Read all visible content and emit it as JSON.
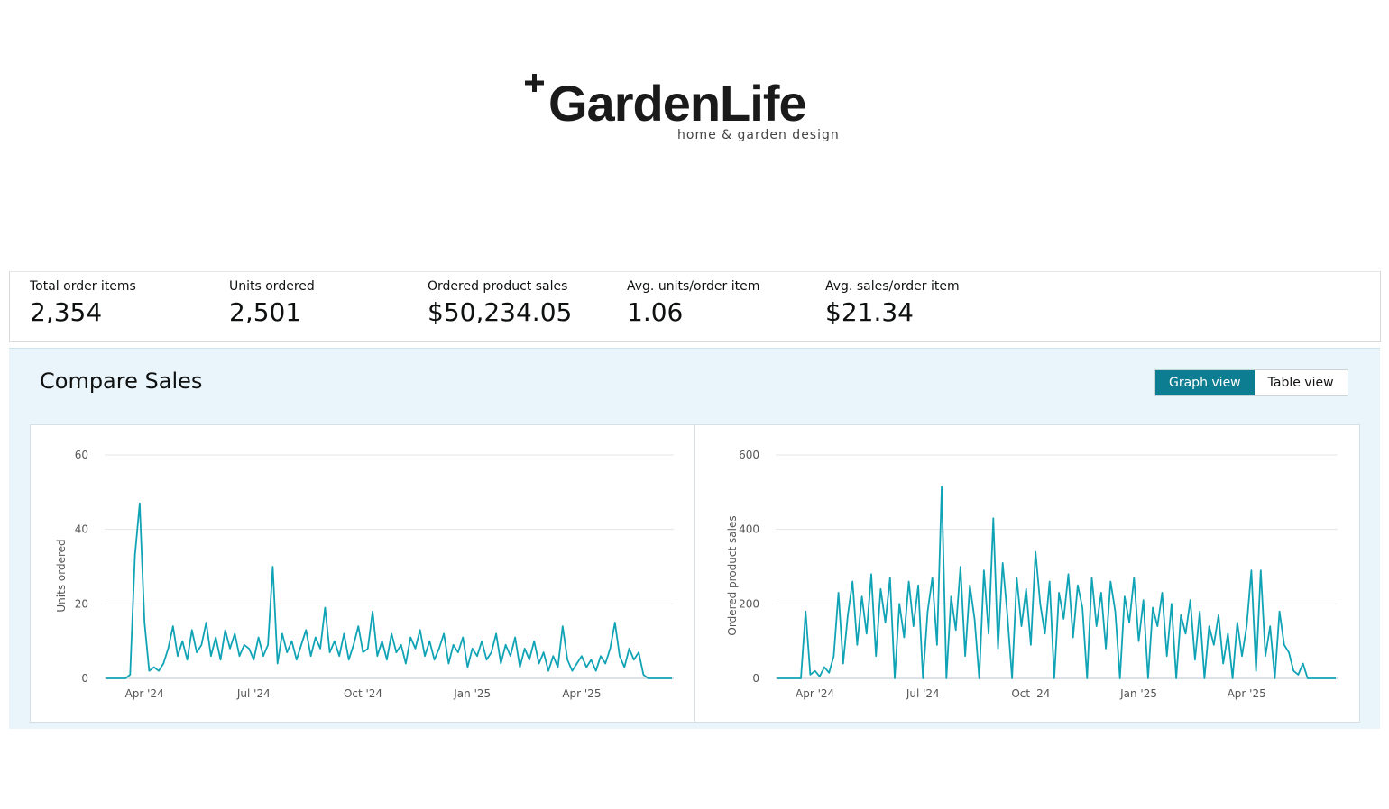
{
  "header": {
    "logo": "GardenLife",
    "tagline": "home & garden design"
  },
  "metrics": [
    {
      "label": "Total order items",
      "value": "2,354"
    },
    {
      "label": "Units ordered",
      "value": "2,501"
    },
    {
      "label": "Ordered product sales",
      "value": "$50,234.05"
    },
    {
      "label": "Avg. units/order item",
      "value": "1.06"
    },
    {
      "label": "Avg. sales/order item",
      "value": "$21.34"
    }
  ],
  "section": {
    "title": "Compare Sales",
    "buttons": [
      "Graph view",
      "Table view"
    ]
  },
  "chart_data": [
    {
      "type": "line",
      "y_label": "Units ordered",
      "color": "#0fa3b5",
      "grid": true,
      "ylim": [
        0,
        60
      ],
      "yticks": [
        0,
        20,
        40,
        60
      ],
      "categories": [
        null,
        null,
        null,
        null,
        null,
        null,
        null,
        null,
        "Apr '24",
        null,
        null,
        null,
        null,
        null,
        null,
        null,
        null,
        null,
        null,
        null,
        null,
        null,
        null,
        null,
        null,
        null,
        null,
        null,
        null,
        null,
        null,
        "Jul '24",
        null,
        null,
        null,
        null,
        null,
        null,
        null,
        null,
        null,
        null,
        null,
        null,
        null,
        null,
        null,
        null,
        null,
        null,
        null,
        null,
        null,
        null,
        "Oct '24",
        null,
        null,
        null,
        null,
        null,
        null,
        null,
        null,
        null,
        null,
        null,
        null,
        null,
        null,
        null,
        null,
        null,
        null,
        null,
        null,
        null,
        null,
        "Jan '25",
        null,
        null,
        null,
        null,
        null,
        null,
        null,
        null,
        null,
        null,
        null,
        null,
        null,
        null,
        null,
        null,
        null,
        null,
        null,
        null,
        null,
        null,
        "Apr '25",
        null,
        null,
        null,
        null,
        null,
        null,
        null,
        null,
        null,
        null,
        null,
        null,
        null,
        null,
        null,
        null,
        null,
        null,
        null
      ],
      "values": [
        0,
        0,
        0,
        0,
        0,
        1,
        33,
        47,
        15,
        2,
        3,
        2,
        4,
        8,
        14,
        6,
        10,
        5,
        13,
        7,
        9,
        15,
        6,
        11,
        5,
        13,
        8,
        12,
        6,
        9,
        8,
        5,
        11,
        6,
        9,
        30,
        4,
        12,
        7,
        10,
        5,
        9,
        13,
        6,
        11,
        8,
        19,
        7,
        10,
        6,
        12,
        5,
        9,
        14,
        7,
        8,
        18,
        6,
        10,
        5,
        12,
        7,
        9,
        4,
        11,
        8,
        13,
        6,
        10,
        5,
        8,
        12,
        4,
        9,
        7,
        11,
        3,
        8,
        6,
        10,
        5,
        7,
        12,
        4,
        9,
        6,
        11,
        3,
        8,
        5,
        10,
        4,
        7,
        2,
        6,
        3,
        14,
        5,
        2,
        4,
        6,
        3,
        5,
        2,
        6,
        4,
        8,
        15,
        6,
        3,
        8,
        5,
        7,
        1,
        0,
        0,
        0,
        0,
        0,
        0
      ]
    },
    {
      "type": "line",
      "y_label": "Ordered product sales",
      "color": "#0fa3b5",
      "grid": true,
      "ylim": [
        0,
        600
      ],
      "yticks": [
        0,
        200,
        400,
        600
      ],
      "categories": [
        null,
        null,
        null,
        null,
        null,
        null,
        null,
        null,
        "Apr '24",
        null,
        null,
        null,
        null,
        null,
        null,
        null,
        null,
        null,
        null,
        null,
        null,
        null,
        null,
        null,
        null,
        null,
        null,
        null,
        null,
        null,
        null,
        "Jul '24",
        null,
        null,
        null,
        null,
        null,
        null,
        null,
        null,
        null,
        null,
        null,
        null,
        null,
        null,
        null,
        null,
        null,
        null,
        null,
        null,
        null,
        null,
        "Oct '24",
        null,
        null,
        null,
        null,
        null,
        null,
        null,
        null,
        null,
        null,
        null,
        null,
        null,
        null,
        null,
        null,
        null,
        null,
        null,
        null,
        null,
        null,
        "Jan '25",
        null,
        null,
        null,
        null,
        null,
        null,
        null,
        null,
        null,
        null,
        null,
        null,
        null,
        null,
        null,
        null,
        null,
        null,
        null,
        null,
        null,
        null,
        "Apr '25",
        null,
        null,
        null,
        null,
        null,
        null,
        null,
        null,
        null,
        null,
        null,
        null,
        null,
        null,
        null,
        null,
        null,
        null,
        null
      ],
      "values": [
        0,
        0,
        0,
        0,
        0,
        0,
        180,
        10,
        20,
        5,
        30,
        15,
        60,
        230,
        40,
        170,
        260,
        90,
        220,
        120,
        280,
        60,
        240,
        150,
        270,
        0,
        200,
        110,
        260,
        140,
        250,
        0,
        180,
        270,
        90,
        515,
        0,
        220,
        130,
        300,
        60,
        250,
        160,
        0,
        290,
        120,
        430,
        80,
        310,
        170,
        0,
        270,
        140,
        240,
        90,
        340,
        200,
        120,
        260,
        0,
        230,
        160,
        280,
        110,
        250,
        190,
        0,
        270,
        140,
        230,
        80,
        260,
        180,
        0,
        220,
        150,
        270,
        100,
        210,
        0,
        190,
        140,
        230,
        60,
        200,
        0,
        170,
        120,
        210,
        50,
        180,
        0,
        140,
        90,
        170,
        40,
        120,
        0,
        150,
        60,
        140,
        290,
        20,
        290,
        60,
        140,
        0,
        180,
        90,
        70,
        20,
        10,
        40,
        0,
        0,
        0,
        0,
        0,
        0,
        0
      ]
    }
  ]
}
